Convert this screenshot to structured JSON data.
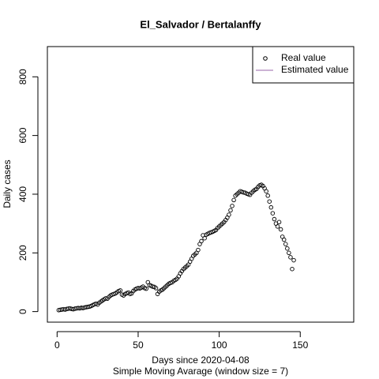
{
  "chart_data": {
    "type": "scatter",
    "title": "El_Salvador / Bertalanffy",
    "x_label": "Days since 2020-04-08",
    "subtitle": "Simple Moving Avarage (window size = 7)",
    "y_label": "Daily cases",
    "xlim": [
      -6,
      183
    ],
    "ylim": [
      -36,
      903
    ],
    "xticks": [
      0,
      50,
      100,
      150
    ],
    "yticks": [
      0,
      200,
      400,
      600,
      800
    ],
    "legend": "topright",
    "x": [
      1,
      2,
      3,
      4,
      5,
      6,
      7,
      8,
      9,
      10,
      11,
      12,
      13,
      14,
      15,
      16,
      17,
      18,
      19,
      20,
      21,
      22,
      23,
      24,
      25,
      26,
      27,
      28,
      29,
      30,
      31,
      32,
      33,
      34,
      35,
      36,
      37,
      38,
      39,
      40,
      41,
      42,
      43,
      44,
      45,
      46,
      47,
      48,
      49,
      50,
      51,
      52,
      53,
      54,
      55,
      56,
      57,
      58,
      59,
      60,
      61,
      62,
      63,
      64,
      65,
      66,
      67,
      68,
      69,
      70,
      71,
      72,
      73,
      74,
      75,
      76,
      77,
      78,
      79,
      80,
      81,
      82,
      83,
      84,
      85,
      86,
      87,
      88,
      89,
      90,
      91,
      92,
      93,
      94,
      95,
      96,
      97,
      98,
      99,
      100,
      101,
      102,
      103,
      104,
      105,
      106,
      107,
      108,
      109,
      110,
      111,
      112,
      113,
      114,
      115,
      116,
      117,
      118,
      119,
      120,
      121,
      122,
      123,
      124,
      125,
      126,
      127,
      128,
      129,
      130,
      131,
      132,
      133,
      134,
      135,
      136,
      137,
      138,
      139,
      140,
      141,
      142,
      143,
      144,
      145,
      146
    ],
    "series": [
      {
        "name": "Real value",
        "color": "#000000",
        "values": [
          5,
          6,
          7,
          8,
          7,
          9,
          10,
          11,
          9,
          8,
          10,
          11,
          12,
          11,
          13,
          12,
          14,
          15,
          16,
          17,
          19,
          22,
          25,
          27,
          24,
          30,
          34,
          38,
          42,
          45,
          44,
          50,
          55,
          58,
          60,
          62,
          66,
          70,
          72,
          58,
          55,
          60,
          63,
          65,
          60,
          62,
          70,
          75,
          78,
          80,
          79,
          82,
          85,
          80,
          78,
          100,
          90,
          88,
          85,
          84,
          80,
          60,
          68,
          72,
          75,
          80,
          85,
          90,
          95,
          98,
          100,
          105,
          108,
          112,
          120,
          130,
          138,
          145,
          150,
          155,
          160,
          170,
          180,
          190,
          195,
          200,
          210,
          230,
          240,
          260,
          250,
          262,
          265,
          268,
          270,
          272,
          275,
          278,
          285,
          290,
          295,
          300,
          305,
          312,
          320,
          330,
          345,
          360,
          380,
          395,
          400,
          405,
          410,
          408,
          406,
          405,
          402,
          400,
          398,
          405,
          410,
          415,
          418,
          425,
          430,
          432,
          428,
          420,
          410,
          395,
          375,
          355,
          335,
          315,
          300,
          290,
          305,
          280,
          255,
          245,
          230,
          215,
          200,
          185,
          145,
          175
        ]
      },
      {
        "name": "Estimated value",
        "color": "#9966aa",
        "values": []
      }
    ]
  }
}
